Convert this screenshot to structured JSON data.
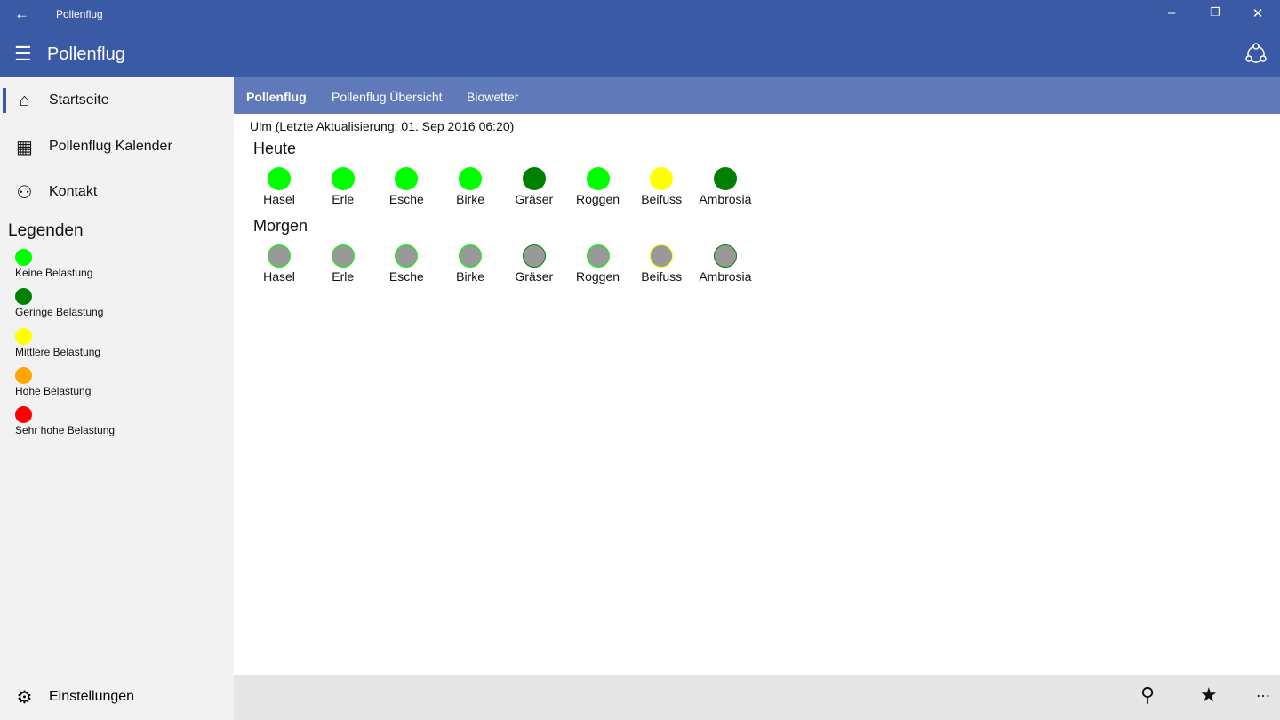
{
  "window": {
    "title": "Pollenflug"
  },
  "appbar": {
    "title": "Pollenflug"
  },
  "sidebar": {
    "items": [
      {
        "label": "Startseite",
        "icon": "home-icon"
      },
      {
        "label": "Pollenflug Kalender",
        "icon": "calendar-icon"
      },
      {
        "label": "Kontakt",
        "icon": "person-icon"
      }
    ],
    "legend_title": "Legenden",
    "legend": [
      {
        "label": "Keine Belastung",
        "color": "#00ff00"
      },
      {
        "label": "Geringe Belastung",
        "color": "#008000"
      },
      {
        "label": "Mittlere Belastung",
        "color": "#ffff00"
      },
      {
        "label": "Hohe Belastung",
        "color": "#ffa500"
      },
      {
        "label": "Sehr hohe Belastung",
        "color": "#ff0000"
      }
    ],
    "settings": "Einstellungen"
  },
  "tabs": [
    {
      "label": "Pollenflug",
      "selected": true
    },
    {
      "label": "Pollenflug Übersicht"
    },
    {
      "label": "Biowetter"
    }
  ],
  "location": "Ulm (Letzte Aktualisierung: 01. Sep 2016 06:20)",
  "days": [
    {
      "title": "Heute",
      "inactive": false,
      "items": [
        {
          "name": "Hasel",
          "level": 0
        },
        {
          "name": "Erle",
          "level": 0
        },
        {
          "name": "Esche",
          "level": 0
        },
        {
          "name": "Birke",
          "level": 0
        },
        {
          "name": "Gräser",
          "level": 1
        },
        {
          "name": "Roggen",
          "level": 0
        },
        {
          "name": "Beifuss",
          "level": 2
        },
        {
          "name": "Ambrosia",
          "level": 1
        }
      ]
    },
    {
      "title": "Morgen",
      "inactive": true,
      "inactive_fill": "#999999",
      "items": [
        {
          "name": "Hasel",
          "level": 0
        },
        {
          "name": "Erle",
          "level": 0
        },
        {
          "name": "Esche",
          "level": 0
        },
        {
          "name": "Birke",
          "level": 0
        },
        {
          "name": "Gräser",
          "level": 1
        },
        {
          "name": "Roggen",
          "level": 0
        },
        {
          "name": "Beifuss",
          "level": 2
        },
        {
          "name": "Ambrosia",
          "level": 1
        }
      ]
    }
  ],
  "bottombar": {
    "icons": [
      "pin-icon",
      "favorite-star-icon",
      "more-icon"
    ]
  }
}
